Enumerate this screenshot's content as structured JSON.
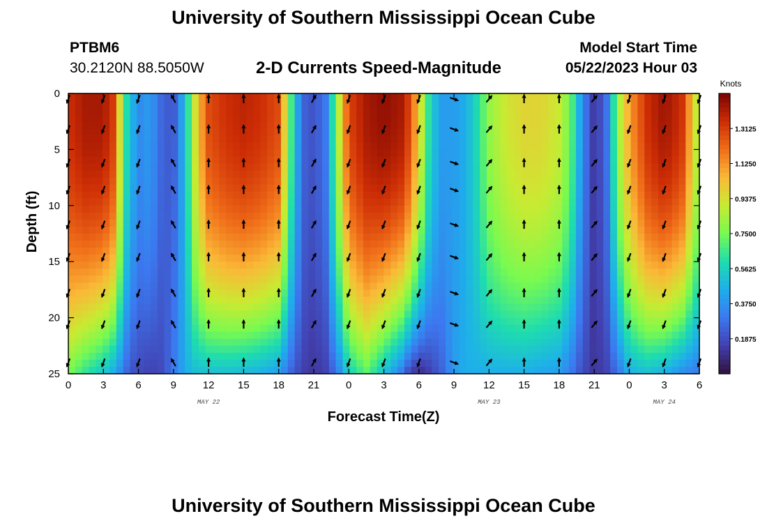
{
  "page": {
    "title": "University of Southern Mississippi Ocean Cube",
    "footer_title": "University of Southern Mississippi Ocean Cube",
    "station": "PTBM6",
    "coords": "30.2120N  88.5050W",
    "plot_title": "2-D Currents Speed-Magnitude",
    "model_start_label": "Model Start Time",
    "model_start_value": "05/22/2023 Hour 03"
  },
  "chart_data": {
    "type": "heatmap",
    "title": "2-D Currents Speed-Magnitude",
    "xlabel": "Forecast Time(Z)",
    "ylabel": "Depth (ft)",
    "x_ticks": [
      "0",
      "3",
      "6",
      "9",
      "12",
      "15",
      "18",
      "21",
      "0",
      "3",
      "6",
      "9",
      "12",
      "15",
      "18",
      "21",
      "0",
      "3",
      "6"
    ],
    "x_hours": [
      0,
      3,
      6,
      9,
      12,
      15,
      18,
      21,
      24,
      27,
      30,
      33,
      36,
      39,
      42,
      45,
      48,
      51,
      54
    ],
    "xlim": [
      0,
      54
    ],
    "date_labels": [
      {
        "label": "MAY 22",
        "hour": 12
      },
      {
        "label": "MAY 23",
        "hour": 36
      },
      {
        "label": "MAY 24",
        "hour": 51
      }
    ],
    "y_ticks": [
      0,
      5,
      10,
      15,
      20,
      25
    ],
    "ylim": [
      0,
      25
    ],
    "colorbar": {
      "title": "Knots",
      "min": 0,
      "max": 1.5,
      "ticks": [
        "1.3125",
        "1.1250",
        "0.9375",
        "0.7500",
        "0.5625",
        "0.3750",
        "0.1875"
      ],
      "tick_values": [
        1.3125,
        1.125,
        0.9375,
        0.75,
        0.5625,
        0.375,
        0.1875
      ]
    },
    "time_profile_hours": [
      0,
      1.5,
      3,
      4,
      4.7,
      5.3,
      6,
      7,
      8,
      9,
      10,
      11,
      12,
      13.5,
      15,
      16.5,
      18,
      19,
      20,
      21,
      22,
      23,
      24,
      25.5,
      27,
      28.5,
      29.2,
      30,
      31,
      32,
      33,
      34,
      35,
      36,
      37.5,
      39,
      40.5,
      42,
      43,
      44,
      45,
      46,
      47,
      48,
      49.5,
      51,
      52.5,
      54
    ],
    "surface_speed": [
      1.35,
      1.42,
      1.42,
      1.3,
      0.7,
      0.5,
      0.35,
      0.4,
      0.25,
      0.2,
      0.5,
      1.0,
      1.28,
      1.35,
      1.38,
      1.35,
      1.28,
      0.7,
      0.25,
      0.2,
      0.3,
      0.8,
      1.3,
      1.42,
      1.46,
      1.42,
      1.3,
      1.0,
      0.55,
      0.4,
      0.4,
      0.45,
      0.6,
      0.8,
      0.92,
      0.97,
      0.97,
      0.9,
      0.72,
      0.35,
      0.12,
      0.25,
      0.8,
      1.1,
      1.35,
      1.44,
      1.35,
      0.8
    ],
    "bottom_speed": [
      0.75,
      0.62,
      0.52,
      0.42,
      0.3,
      0.2,
      0.18,
      0.15,
      0.18,
      0.3,
      0.45,
      0.5,
      0.5,
      0.5,
      0.48,
      0.45,
      0.4,
      0.25,
      0.15,
      0.12,
      0.15,
      0.3,
      0.55,
      0.7,
      0.5,
      0.3,
      0.15,
      0.08,
      0.15,
      0.25,
      0.4,
      0.45,
      0.45,
      0.45,
      0.45,
      0.45,
      0.42,
      0.4,
      0.3,
      0.18,
      0.12,
      0.15,
      0.28,
      0.45,
      0.5,
      0.45,
      0.35,
      0.3
    ],
    "arrow_hours": [
      0,
      3,
      6,
      9,
      12,
      15,
      18,
      21,
      24,
      27,
      30,
      33,
      36,
      39,
      42,
      45,
      48,
      51,
      54
    ],
    "arrow_depths": [
      0.5,
      3.2,
      6.2,
      8.6,
      11.7,
      14.6,
      17.8,
      20.6,
      24.0
    ],
    "arrow_direction_deg": [
      200,
      200,
      200,
      330,
      0,
      0,
      0,
      30,
      200,
      200,
      200,
      110,
      40,
      0,
      0,
      40,
      200,
      200,
      200
    ]
  }
}
